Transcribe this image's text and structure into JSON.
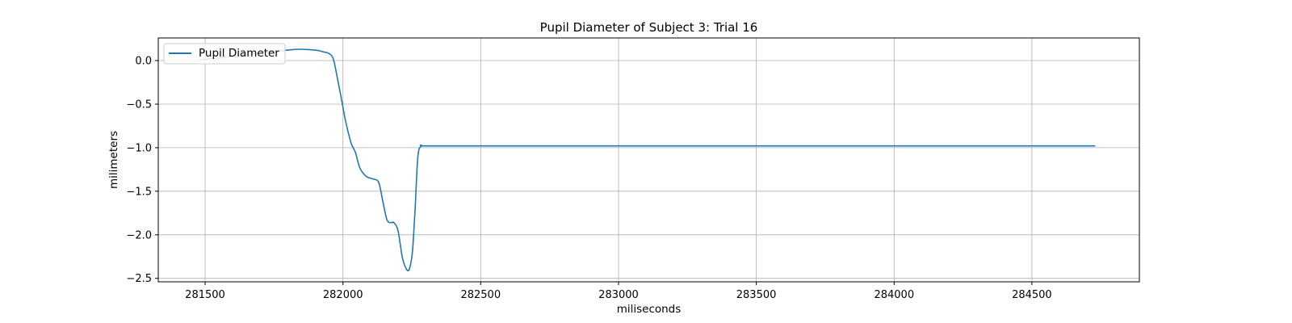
{
  "chart_data": {
    "type": "line",
    "title": "Pupil Diameter of Subject 3: Trial 16",
    "xlabel": "miliseconds",
    "ylabel": "milimeters",
    "xlim": [
      281330,
      284890
    ],
    "ylim": [
      -2.54,
      0.26
    ],
    "xticks": [
      281500,
      282000,
      282500,
      283000,
      283500,
      284000,
      284500
    ],
    "yticks": [
      0.0,
      -0.5,
      -1.0,
      -1.5,
      -2.0,
      -2.5
    ],
    "ytick_labels": [
      "0.0",
      "−0.5",
      "−1.0",
      "−1.5",
      "−2.0",
      "−2.5"
    ],
    "grid": true,
    "legend": {
      "position": "top-left",
      "entries": [
        "Pupil Diameter"
      ]
    },
    "series": [
      {
        "name": "Pupil Diameter",
        "color": "#1f77b4",
        "x": [
          281480,
          281550,
          281650,
          281740,
          281800,
          281840,
          281900,
          281930,
          281950,
          281965,
          281980,
          281995,
          282010,
          282030,
          282045,
          282060,
          282075,
          282090,
          282110,
          282130,
          282145,
          282160,
          282175,
          282185,
          282200,
          282215,
          282228,
          282240,
          282252,
          282262,
          282272,
          282285,
          282300,
          282500,
          283000,
          283500,
          284000,
          284500,
          284730
        ],
        "y": [
          0.01,
          0.03,
          0.07,
          0.1,
          0.12,
          0.13,
          0.12,
          0.1,
          0.08,
          0.02,
          -0.2,
          -0.45,
          -0.7,
          -0.95,
          -1.05,
          -1.22,
          -1.3,
          -1.34,
          -1.36,
          -1.4,
          -1.62,
          -1.83,
          -1.86,
          -1.86,
          -1.95,
          -2.25,
          -2.38,
          -2.4,
          -2.2,
          -1.7,
          -1.1,
          -0.98,
          -0.98,
          -0.98,
          -0.98,
          -0.98,
          -0.98,
          -0.98,
          -0.98
        ]
      }
    ]
  }
}
